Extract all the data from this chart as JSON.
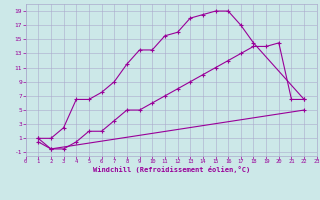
{
  "xlabel": "Windchill (Refroidissement éolien,°C)",
  "background_color": "#cce8e8",
  "grid_color": "#aaaacc",
  "line_color": "#990099",
  "line1_x": [
    1,
    2,
    3,
    4,
    5,
    6,
    7,
    8,
    9,
    10,
    11,
    12,
    13,
    14,
    15,
    16,
    17,
    18,
    22
  ],
  "line1_y": [
    1,
    1,
    2.5,
    6.5,
    6.5,
    7.5,
    9,
    11.5,
    13.5,
    13.5,
    15.5,
    16,
    18,
    18.5,
    19,
    19,
    17,
    14.5,
    6.5
  ],
  "line2_x": [
    1,
    2,
    3,
    4,
    5,
    6,
    7,
    8,
    9,
    10,
    11,
    12,
    13,
    14,
    15,
    16,
    17,
    18,
    19,
    20,
    21,
    22
  ],
  "line2_y": [
    1,
    -0.5,
    -0.5,
    0.5,
    2,
    2,
    3.5,
    5,
    5,
    6,
    7,
    8,
    9,
    10,
    11,
    12,
    13,
    14,
    14,
    14.5,
    6.5,
    6.5
  ],
  "line3_x": [
    1,
    2,
    22
  ],
  "line3_y": [
    0.5,
    -0.5,
    5
  ],
  "xlim": [
    0,
    23
  ],
  "ylim": [
    -1.5,
    20
  ],
  "xticks": [
    0,
    1,
    2,
    3,
    4,
    5,
    6,
    7,
    8,
    9,
    10,
    11,
    12,
    13,
    14,
    15,
    16,
    17,
    18,
    19,
    20,
    21,
    22,
    23
  ],
  "yticks": [
    -1,
    1,
    3,
    5,
    7,
    9,
    11,
    13,
    15,
    17,
    19
  ]
}
